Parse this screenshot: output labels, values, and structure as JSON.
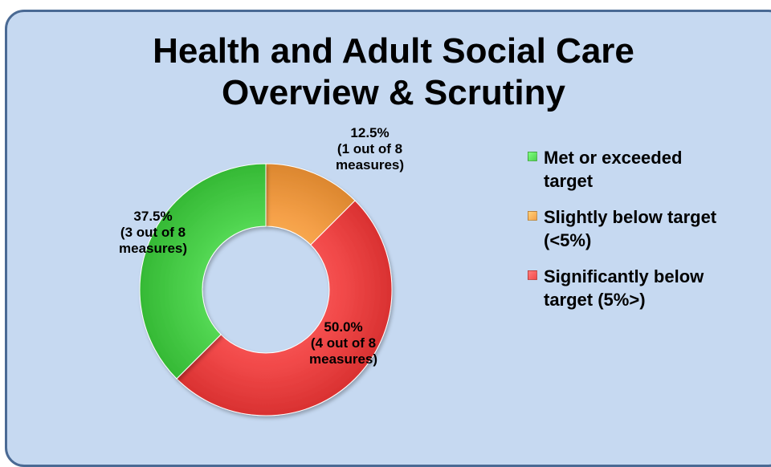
{
  "chart_data": {
    "type": "pie",
    "donut": true,
    "title_lines": [
      "Health and Adult Social Care",
      "Overview & Scrutiny"
    ],
    "slices": [
      {
        "name": "Slightly below target (<5%)",
        "legend_label": "Slightly below target\n(<5%)",
        "value": 12.5,
        "percent_label": "12.5%",
        "count_label": "(1 out of 8",
        "unit_label": "measures)",
        "color": "#f5a048"
      },
      {
        "name": "Significantly below target (5%>)",
        "legend_label": "Significantly below\ntarget (5%>)",
        "value": 50.0,
        "percent_label": "50.0%",
        "count_label": "(4 out of 8",
        "unit_label": "measures)",
        "color": "#f24a4a"
      },
      {
        "name": "Met or exceeded target",
        "legend_label": "Met or exceeded\ntarget",
        "value": 37.5,
        "percent_label": "37.5%",
        "count_label": "(3 out of 8",
        "unit_label": "measures)",
        "color": "#4ed24e"
      }
    ],
    "legend_order": [
      2,
      0,
      1
    ],
    "legend_position": "right"
  },
  "background_color": "#c6d9f1",
  "border_color": "#4a6a94"
}
